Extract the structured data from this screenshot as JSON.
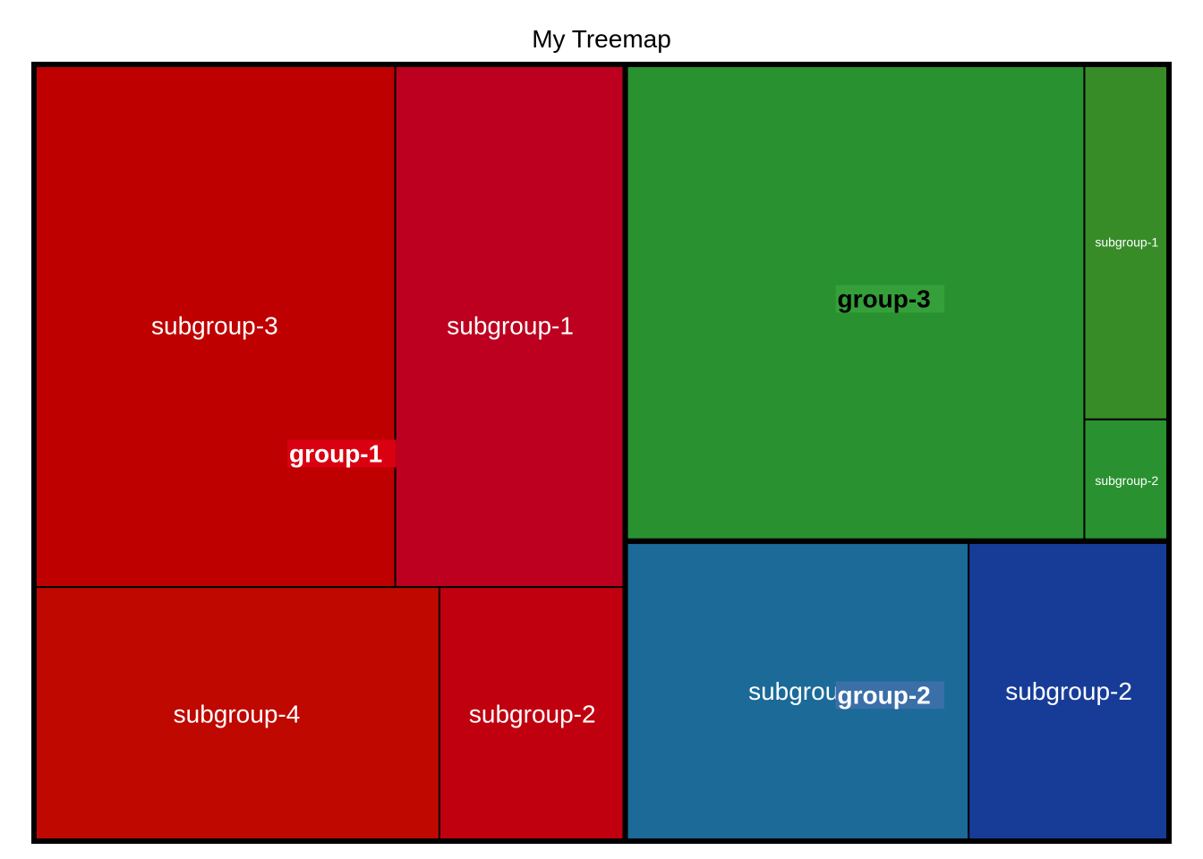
{
  "chart_data": {
    "type": "treemap",
    "title": "My Treemap",
    "groups": [
      {
        "name": "group-1",
        "color": "#cc0000",
        "label_text_color": "#ffffff",
        "label_bg": "#d90011",
        "subgroups": [
          {
            "name": "subgroup-3",
            "value": 22,
            "color": "#bf0000"
          },
          {
            "name": "subgroup-1",
            "value": 14,
            "color": "#bd001f"
          },
          {
            "name": "subgroup-4",
            "value": 12,
            "color": "#be0800"
          },
          {
            "name": "subgroup-2",
            "value": 5.5,
            "color": "#c0000f"
          }
        ]
      },
      {
        "name": "group-3",
        "color": "#2a9130",
        "label_text_color": "#000000",
        "label_bg": "#35a03a",
        "subgroups": [
          {
            "name": "group-3",
            "value": 25.5,
            "color": "#2a9130"
          },
          {
            "name": "subgroup-1",
            "value": 3.5,
            "color": "#378c28"
          },
          {
            "name": "subgroup-2",
            "value": 1.2,
            "color": "#2a9130"
          }
        ]
      },
      {
        "name": "group-2",
        "color": "#1b6a98",
        "label_text_color": "#ffffff",
        "label_bg": "#3a6fa8",
        "subgroups": [
          {
            "name": "subgroup-",
            "value": 12,
            "color": "#1b6a98"
          },
          {
            "name": "subgroup-2",
            "value": 7,
            "color": "#173c98"
          }
        ]
      }
    ]
  }
}
